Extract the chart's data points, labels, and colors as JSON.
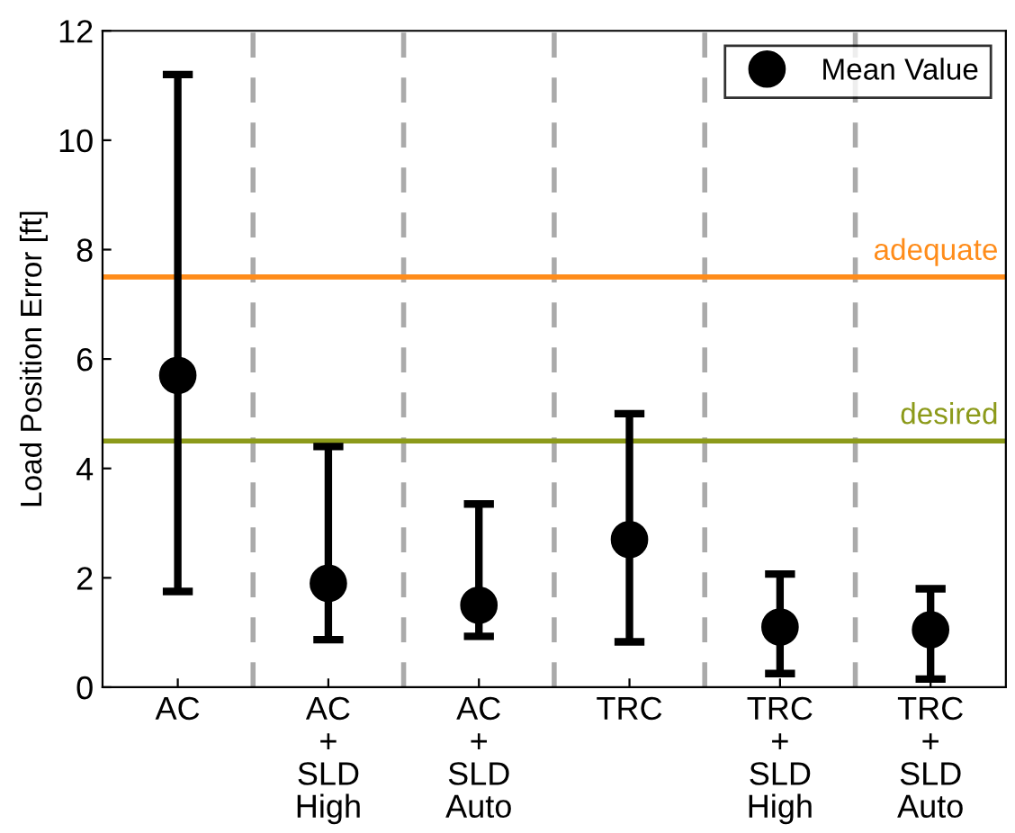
{
  "chart_data": {
    "type": "scatter",
    "ylabel": "Load Position Error [ft]",
    "categories": [
      "AC",
      "AC\n+\nSLD\nHigh",
      "AC\n+\nSLD\nAuto",
      "TRC",
      "TRC\n+\nSLD\nHigh",
      "TRC\n+\nSLD\nAuto"
    ],
    "series": [
      {
        "name": "Mean Value",
        "color": "#000000",
        "values": [
          5.7,
          1.9,
          1.5,
          2.7,
          1.1,
          1.05
        ],
        "errors": [
          [
            1.75,
            11.2
          ],
          [
            0.87,
            4.4
          ],
          [
            0.93,
            3.35
          ],
          [
            0.83,
            5.0
          ],
          [
            0.25,
            2.07
          ],
          [
            0.15,
            1.8
          ]
        ]
      }
    ],
    "ylim": [
      0,
      12
    ],
    "yticks": [
      0,
      2,
      4,
      6,
      8,
      10,
      12
    ],
    "ref_lines": [
      {
        "axis": "y",
        "value": 7.5,
        "label": "adequate",
        "color": "#ff8c1a"
      },
      {
        "axis": "y",
        "value": 4.5,
        "label": "desired",
        "color": "#8c9a1a"
      }
    ],
    "grid": "x",
    "legend": "top right",
    "marker": "circle"
  }
}
